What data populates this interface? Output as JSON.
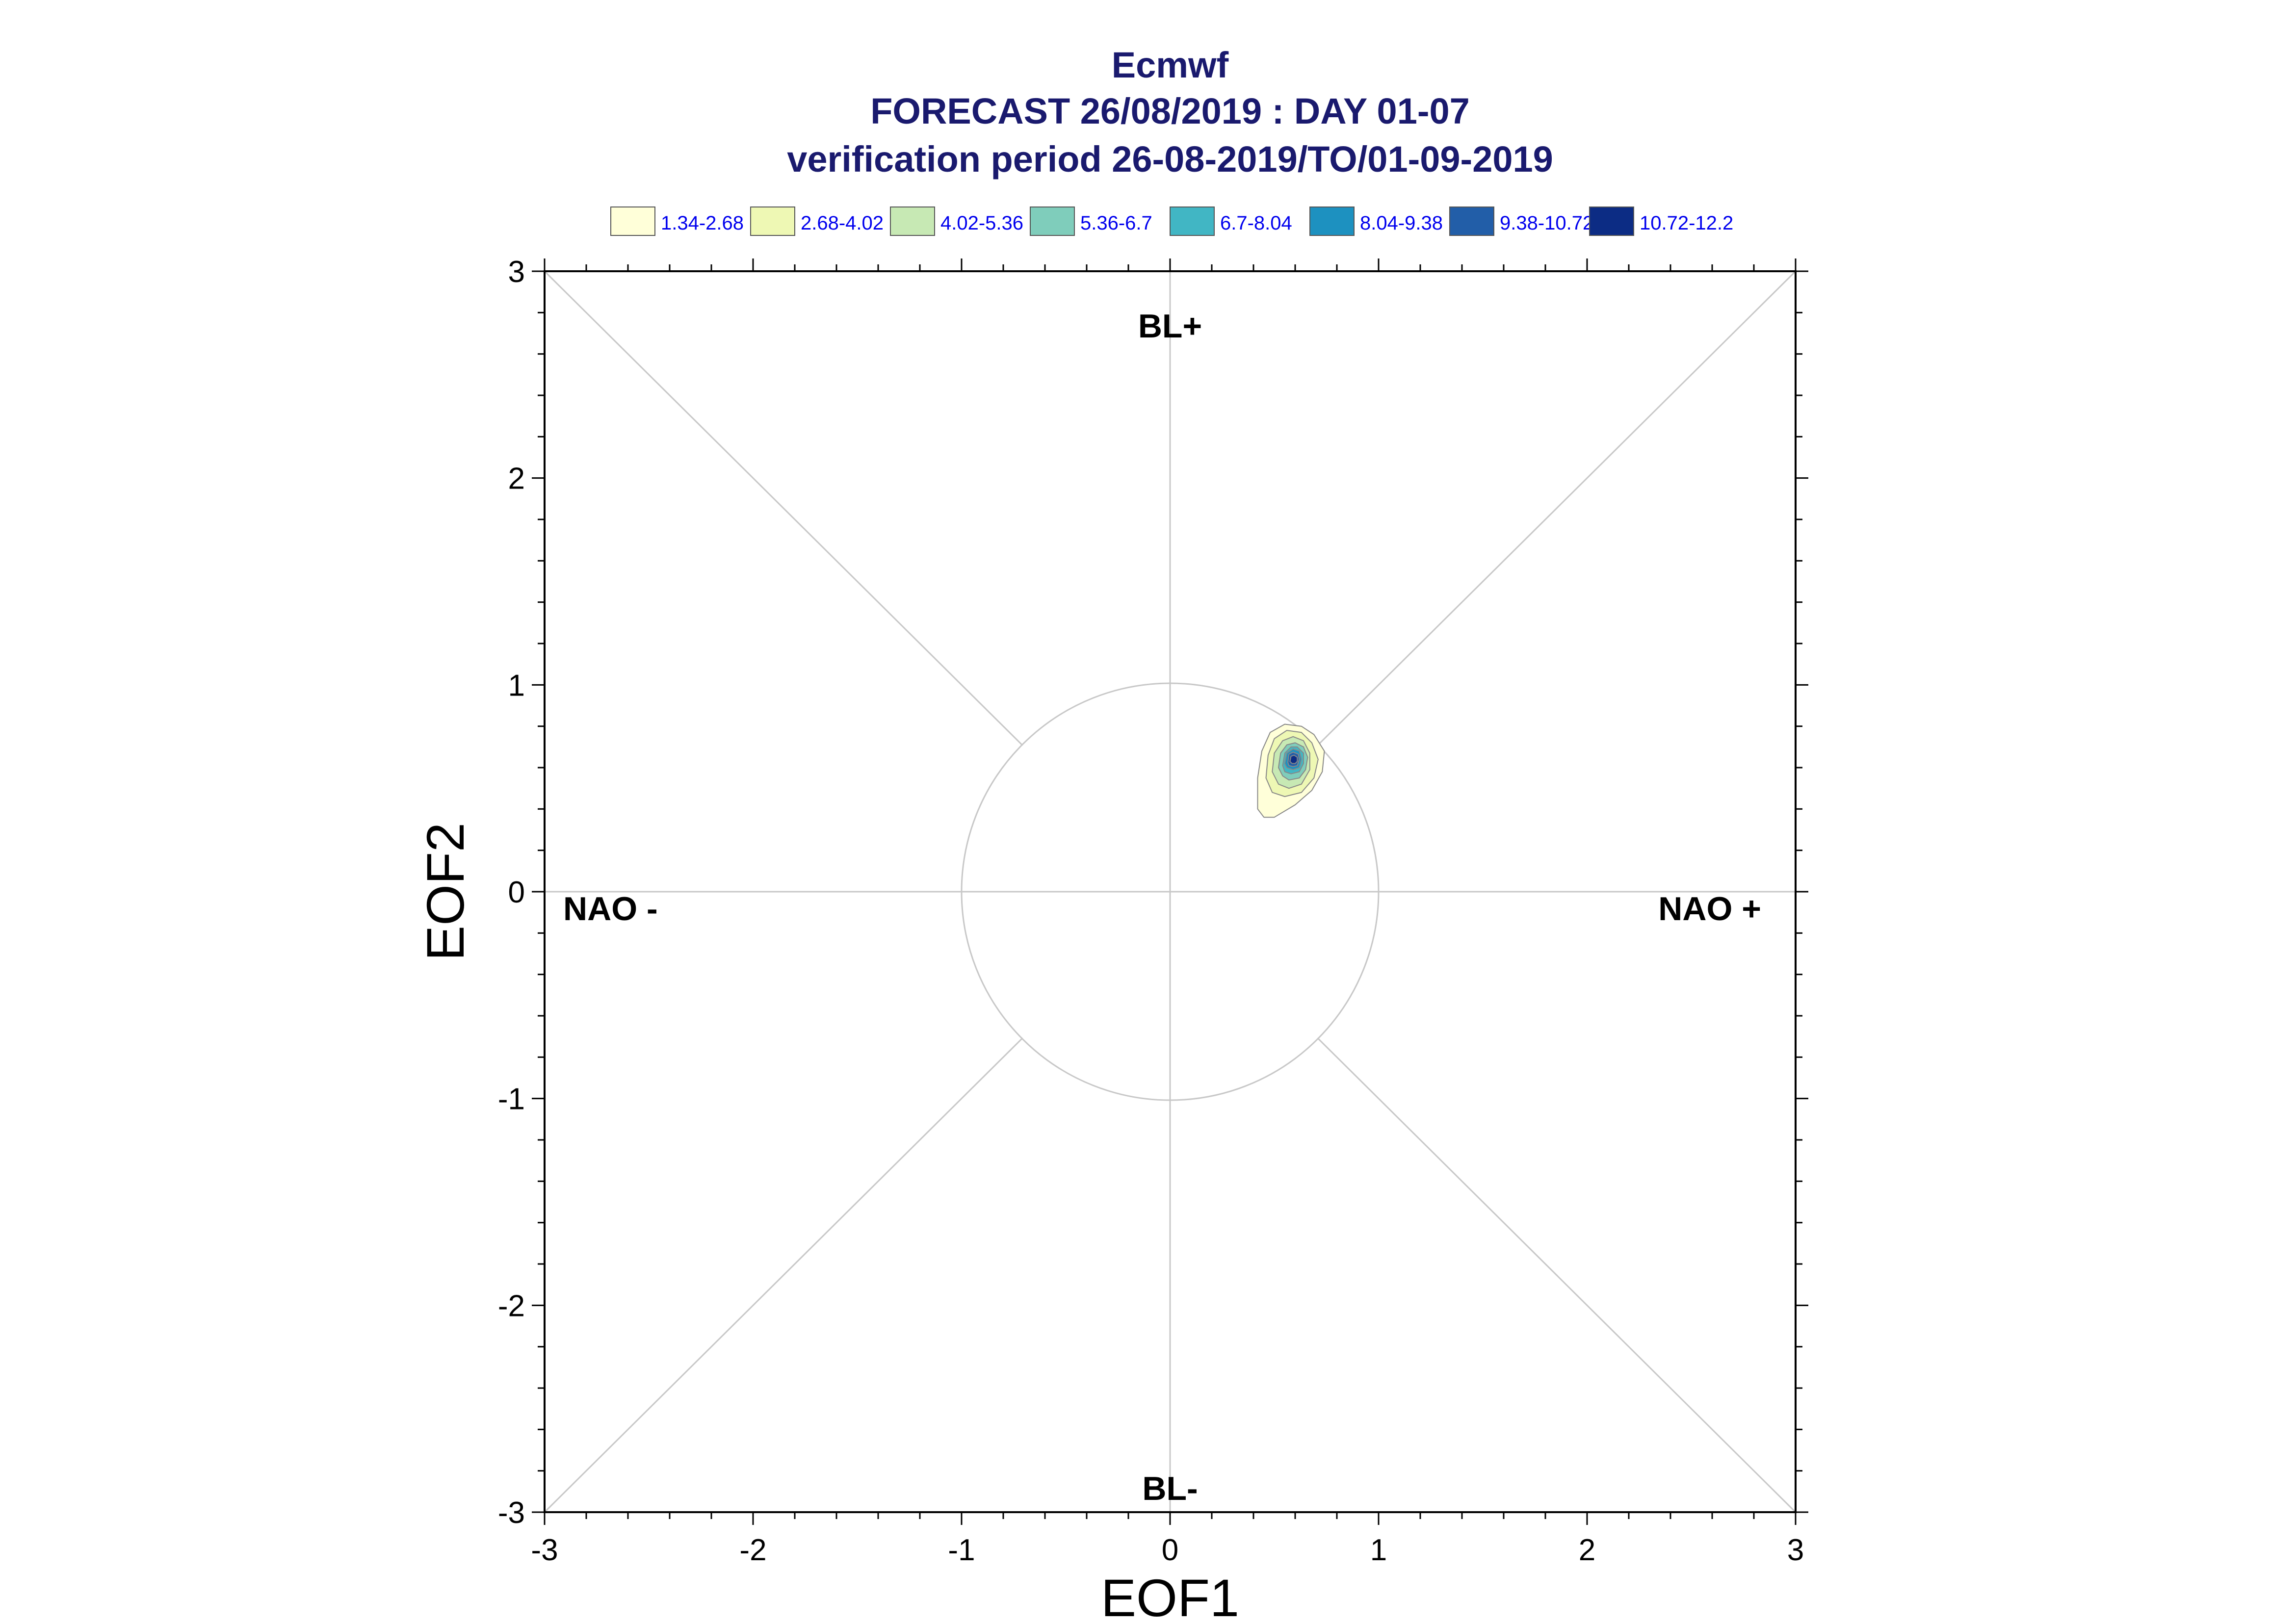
{
  "chart_data": {
    "type": "contour",
    "title_lines": [
      "Ecmwf",
      "FORECAST 26/08/2019 : DAY 01-07",
      "verification period 26-08-2019/TO/01-09-2019"
    ],
    "xlabel": "EOF1",
    "ylabel": "EOF2",
    "xlim": [
      -3,
      3
    ],
    "ylim": [
      -3,
      3
    ],
    "x_ticks": [
      "-3",
      "-2",
      "-1",
      "0",
      "1",
      "2",
      "3"
    ],
    "y_ticks": [
      "-3",
      "-2",
      "-1",
      "0",
      "1",
      "2",
      "3"
    ],
    "region_labels": {
      "top": "BL+",
      "bottom": "BL-",
      "left": "NAO -",
      "right": "NAO +"
    },
    "reference_circle_radius": 1,
    "legend": [
      {
        "label": "1.34-2.68",
        "color": "#ffffd9"
      },
      {
        "label": "2.68-4.02",
        "color": "#eef8b4"
      },
      {
        "label": "4.02-5.36",
        "color": "#c7e9b4"
      },
      {
        "label": "5.36-6.7",
        "color": "#7fcdbb"
      },
      {
        "label": "6.7-8.04",
        "color": "#41b6c4"
      },
      {
        "label": "8.04-9.38",
        "color": "#1d91c0"
      },
      {
        "label": "9.38-10.72",
        "color": "#225ea8"
      },
      {
        "label": "10.72-12.2",
        "color": "#0c2c84"
      }
    ],
    "density_center": [
      0.59,
      0.64
    ],
    "contours": [
      {
        "level": 1.34,
        "points": [
          [
            0.42,
            0.4
          ],
          [
            0.42,
            0.55
          ],
          [
            0.44,
            0.68
          ],
          [
            0.48,
            0.77
          ],
          [
            0.55,
            0.81
          ],
          [
            0.63,
            0.8
          ],
          [
            0.69,
            0.76
          ],
          [
            0.74,
            0.68
          ],
          [
            0.73,
            0.58
          ],
          [
            0.68,
            0.49
          ],
          [
            0.6,
            0.42
          ],
          [
            0.5,
            0.36
          ],
          [
            0.45,
            0.36
          ]
        ]
      },
      {
        "level": 2.68,
        "points": [
          [
            0.46,
            0.55
          ],
          [
            0.47,
            0.66
          ],
          [
            0.5,
            0.74
          ],
          [
            0.56,
            0.78
          ],
          [
            0.63,
            0.77
          ],
          [
            0.68,
            0.72
          ],
          [
            0.71,
            0.64
          ],
          [
            0.69,
            0.55
          ],
          [
            0.63,
            0.48
          ],
          [
            0.55,
            0.46
          ],
          [
            0.49,
            0.48
          ]
        ]
      },
      {
        "level": 4.02,
        "points": [
          [
            0.49,
            0.58
          ],
          [
            0.5,
            0.67
          ],
          [
            0.54,
            0.73
          ],
          [
            0.59,
            0.75
          ],
          [
            0.64,
            0.73
          ],
          [
            0.67,
            0.67
          ],
          [
            0.67,
            0.59
          ],
          [
            0.63,
            0.52
          ],
          [
            0.57,
            0.5
          ],
          [
            0.52,
            0.52
          ]
        ]
      },
      {
        "level": 5.36,
        "points": [
          [
            0.52,
            0.6
          ],
          [
            0.53,
            0.67
          ],
          [
            0.56,
            0.71
          ],
          [
            0.6,
            0.72
          ],
          [
            0.64,
            0.7
          ],
          [
            0.66,
            0.65
          ],
          [
            0.65,
            0.59
          ],
          [
            0.62,
            0.55
          ],
          [
            0.57,
            0.54
          ],
          [
            0.54,
            0.56
          ]
        ]
      },
      {
        "level": 6.7,
        "points": [
          [
            0.54,
            0.61
          ],
          [
            0.55,
            0.67
          ],
          [
            0.58,
            0.7
          ],
          [
            0.61,
            0.7
          ],
          [
            0.64,
            0.67
          ],
          [
            0.64,
            0.62
          ],
          [
            0.62,
            0.58
          ],
          [
            0.58,
            0.57
          ],
          [
            0.55,
            0.58
          ]
        ]
      },
      {
        "level": 8.04,
        "points": [
          [
            0.55,
            0.62
          ],
          [
            0.56,
            0.67
          ],
          [
            0.59,
            0.69
          ],
          [
            0.62,
            0.68
          ],
          [
            0.63,
            0.64
          ],
          [
            0.62,
            0.6
          ],
          [
            0.59,
            0.59
          ],
          [
            0.56,
            0.6
          ]
        ]
      },
      {
        "level": 9.38,
        "points": [
          [
            0.565,
            0.625
          ],
          [
            0.57,
            0.665
          ],
          [
            0.59,
            0.675
          ],
          [
            0.615,
            0.665
          ],
          [
            0.62,
            0.64
          ],
          [
            0.61,
            0.61
          ],
          [
            0.59,
            0.605
          ],
          [
            0.57,
            0.61
          ]
        ]
      },
      {
        "level": 10.72,
        "points": [
          [
            0.575,
            0.63
          ],
          [
            0.58,
            0.655
          ],
          [
            0.595,
            0.66
          ],
          [
            0.61,
            0.65
          ],
          [
            0.61,
            0.63
          ],
          [
            0.6,
            0.62
          ],
          [
            0.585,
            0.62
          ]
        ]
      }
    ]
  }
}
